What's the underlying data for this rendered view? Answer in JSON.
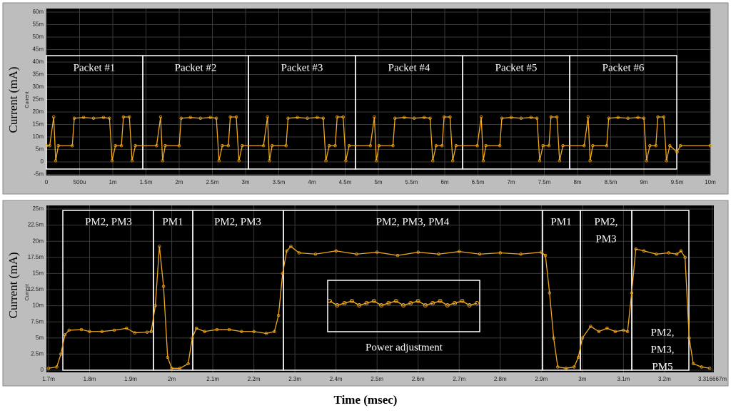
{
  "chart_data": [
    {
      "type": "line",
      "y_label": "Current (mA)",
      "inner_label": "Current",
      "annotations": [
        [
          "Packet #1"
        ],
        [
          "Packet #2"
        ],
        [
          "Packet #3"
        ],
        [
          "Packet #4"
        ],
        [
          "Packet #5"
        ],
        [
          "Packet #6"
        ]
      ],
      "xlim": [
        0,
        10
      ],
      "xticks": [
        0,
        {
          "value": 0.5,
          "label": "500u"
        },
        {
          "value": 1,
          "label": "1m"
        },
        {
          "value": 1.5,
          "label": "1.5m"
        },
        {
          "value": 2,
          "label": "2m"
        },
        {
          "value": 2.5,
          "label": "2.5m"
        },
        {
          "value": 3,
          "label": "3m"
        },
        {
          "value": 3.5,
          "label": "3.5m"
        },
        {
          "value": 4,
          "label": "4m"
        },
        {
          "value": 4.5,
          "label": "4.5m"
        },
        {
          "value": 5,
          "label": "5m"
        },
        {
          "value": 5.5,
          "label": "5.5m"
        },
        {
          "value": 6,
          "label": "6m"
        },
        {
          "value": 6.5,
          "label": "6.5m"
        },
        {
          "value": 7,
          "label": "7m"
        },
        {
          "value": 7.5,
          "label": "7.5m"
        },
        {
          "value": 8,
          "label": "8m"
        },
        {
          "value": 8.5,
          "label": "8.5m"
        },
        {
          "value": 9,
          "label": "9m"
        },
        {
          "value": 9.5,
          "label": "9.5m"
        },
        {
          "value": 10,
          "label": "10m"
        }
      ],
      "ylim": [
        -5,
        60
      ],
      "yticks": [
        {
          "value": -5,
          "label": "-5m"
        },
        0,
        {
          "value": 5,
          "label": "5m"
        },
        {
          "value": 10,
          "label": "10m"
        },
        {
          "value": 15,
          "label": "15m"
        },
        {
          "value": 20,
          "label": "20m"
        },
        {
          "value": 25,
          "label": "25m"
        },
        {
          "value": 30,
          "label": "30m"
        },
        {
          "value": 35,
          "label": "35m"
        },
        {
          "value": 40,
          "label": "40m"
        },
        {
          "value": 45,
          "label": "45m"
        },
        {
          "value": 50,
          "label": "50m"
        },
        {
          "value": 55,
          "label": "55m"
        },
        {
          "value": 60,
          "label": "60m"
        }
      ],
      "grid": true,
      "color": "#f0a81c",
      "x": [
        0,
        0.05,
        0.11,
        0.14,
        0.18,
        0.39,
        0.42,
        0.56,
        0.71,
        0.86,
        0.95,
        0.99,
        1.04,
        1.13,
        1.16,
        1.25,
        1.29,
        1.34,
        1.66,
        1.72,
        1.75,
        1.79,
        2.0,
        2.03,
        2.17,
        2.32,
        2.47,
        2.56,
        2.6,
        2.65,
        2.74,
        2.77,
        2.86,
        2.9,
        2.95,
        3.27,
        3.33,
        3.36,
        3.4,
        3.61,
        3.64,
        3.78,
        3.93,
        4.08,
        4.17,
        4.21,
        4.26,
        4.35,
        4.38,
        4.47,
        4.51,
        4.56,
        4.88,
        4.94,
        4.97,
        5.01,
        5.22,
        5.25,
        5.39,
        5.54,
        5.69,
        5.78,
        5.82,
        5.87,
        5.96,
        5.99,
        6.08,
        6.12,
        6.17,
        6.49,
        6.55,
        6.58,
        6.62,
        6.83,
        6.86,
        7.0,
        7.15,
        7.3,
        7.39,
        7.43,
        7.48,
        7.57,
        7.6,
        7.69,
        7.73,
        7.78,
        8.1,
        8.16,
        8.19,
        8.23,
        8.44,
        8.47,
        8.61,
        8.76,
        8.91,
        9.0,
        9.04,
        9.09,
        9.18,
        9.21,
        9.3,
        9.34,
        9.39,
        9.5,
        9.55,
        10
      ],
      "values": [
        6.5,
        6.5,
        18,
        0.5,
        6.5,
        6.5,
        17.5,
        17.8,
        17.5,
        17.8,
        17.5,
        0.5,
        6.5,
        6.5,
        18,
        18,
        0.5,
        6.5,
        6.5,
        18,
        0.5,
        6.5,
        6.5,
        17.5,
        17.8,
        17.5,
        17.8,
        17.5,
        0.5,
        6.5,
        6.5,
        18,
        18,
        0.5,
        6.5,
        6.5,
        18,
        0.5,
        6.5,
        6.5,
        17.5,
        17.8,
        17.5,
        17.8,
        17.5,
        0.5,
        6.5,
        6.5,
        18,
        18,
        0.5,
        6.5,
        6.5,
        18,
        0.5,
        6.5,
        6.5,
        17.5,
        17.8,
        17.5,
        17.8,
        17.5,
        0.5,
        6.5,
        6.5,
        18,
        18,
        0.5,
        6.5,
        6.5,
        18,
        0.5,
        6.5,
        6.5,
        17.5,
        17.8,
        17.5,
        17.8,
        17.5,
        0.5,
        6.5,
        6.5,
        18,
        18,
        0.5,
        6.5,
        6.5,
        18,
        0.5,
        6.5,
        6.5,
        17.5,
        17.8,
        17.5,
        17.8,
        17.5,
        0.5,
        6.5,
        6.5,
        18,
        18,
        0.5,
        6.5,
        4,
        6.5,
        6.5
      ]
    },
    {
      "type": "line",
      "y_label": "Current (mA)",
      "x_label": "Time (msec)",
      "inner_label": "Current",
      "annotations": [
        [
          "PM2, PM3"
        ],
        [
          "PM1"
        ],
        [
          "PM2, PM3"
        ],
        [
          "PM2, PM3, PM4"
        ],
        [
          "PM1"
        ],
        [
          "PM2,",
          "PM3"
        ],
        [
          "PM2,",
          "PM3,",
          "PM5"
        ],
        [
          "Power adjustment"
        ]
      ],
      "xlim": [
        1.7,
        3.316667
      ],
      "xticks": [
        {
          "value": 1.7,
          "label": "1.7m"
        },
        {
          "value": 1.8,
          "label": "1.8m"
        },
        {
          "value": 1.9,
          "label": "1.9m"
        },
        {
          "value": 2,
          "label": "2m"
        },
        {
          "value": 2.1,
          "label": "2.1m"
        },
        {
          "value": 2.2,
          "label": "2.2m"
        },
        {
          "value": 2.3,
          "label": "2.3m"
        },
        {
          "value": 2.4,
          "label": "2.4m"
        },
        {
          "value": 2.5,
          "label": "2.5m"
        },
        {
          "value": 2.6,
          "label": "2.6m"
        },
        {
          "value": 2.7,
          "label": "2.7m"
        },
        {
          "value": 2.8,
          "label": "2.8m"
        },
        {
          "value": 2.9,
          "label": "2.9m"
        },
        {
          "value": 3,
          "label": "3m"
        },
        {
          "value": 3.1,
          "label": "3.1m"
        },
        {
          "value": 3.2,
          "label": "3.2m"
        },
        {
          "value": 3.316667,
          "label": "3.316667m"
        }
      ],
      "ylim": [
        0,
        25
      ],
      "yticks": [
        0,
        {
          "value": 2.5,
          "label": "2.5m"
        },
        {
          "value": 5,
          "label": "5m"
        },
        {
          "value": 7.5,
          "label": "7.5m"
        },
        {
          "value": 10,
          "label": "10m"
        },
        {
          "value": 12.5,
          "label": "12.5m"
        },
        {
          "value": 15,
          "label": "15m"
        },
        {
          "value": 17.5,
          "label": "17.5m"
        },
        {
          "value": 20,
          "label": "20m"
        },
        {
          "value": 22.5,
          "label": "22.5m"
        },
        {
          "value": 25,
          "label": "25m"
        }
      ],
      "grid": true,
      "color": "#f0a81c",
      "x": [
        1.7,
        1.72,
        1.73,
        1.74,
        1.75,
        1.78,
        1.8,
        1.83,
        1.86,
        1.89,
        1.91,
        1.94,
        1.95,
        1.96,
        1.97,
        1.98,
        1.99,
        2.0,
        2.02,
        2.04,
        2.05,
        2.06,
        2.08,
        2.11,
        2.14,
        2.17,
        2.2,
        2.23,
        2.25,
        2.26,
        2.27,
        2.28,
        2.29,
        2.31,
        2.35,
        2.4,
        2.45,
        2.5,
        2.55,
        2.6,
        2.65,
        2.7,
        2.75,
        2.8,
        2.85,
        2.9,
        2.91,
        2.92,
        2.93,
        2.94,
        2.96,
        2.98,
        2.99,
        3.0,
        3.02,
        3.04,
        3.06,
        3.08,
        3.1,
        3.11,
        3.12,
        3.13,
        3.15,
        3.18,
        3.21,
        3.23,
        3.24,
        3.25,
        3.26,
        3.27,
        3.29,
        3.31
      ],
      "values": [
        0.3,
        0.5,
        2.5,
        5.5,
        6.2,
        6.3,
        6.0,
        6.0,
        6.2,
        6.5,
        5.8,
        5.9,
        6.0,
        10,
        19.2,
        13,
        2,
        0.3,
        0.3,
        1,
        5,
        6.5,
        6.0,
        6.3,
        6.3,
        6.0,
        6.0,
        5.7,
        6.0,
        8.5,
        15,
        18.5,
        19.2,
        18.2,
        18.0,
        18.5,
        18.0,
        18.3,
        17.8,
        18.3,
        18.0,
        18.4,
        18.0,
        18.2,
        18.0,
        18.3,
        17.8,
        12,
        5,
        0.5,
        0.3,
        0.5,
        2,
        5,
        6.8,
        6.0,
        6.5,
        6.0,
        6.2,
        6,
        12,
        18.8,
        18.5,
        18.0,
        18.2,
        18.0,
        18.5,
        17.5,
        5,
        1,
        0.5,
        0.3
      ]
    }
  ]
}
